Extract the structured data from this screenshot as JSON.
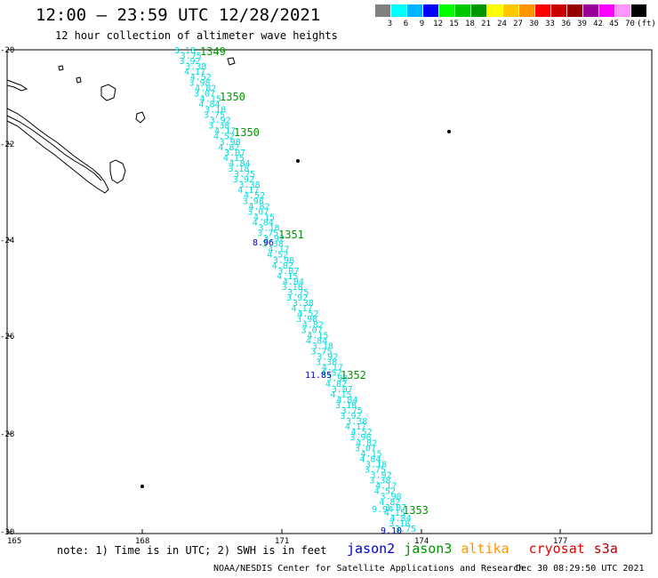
{
  "title": "12:00 — 23:59 UTC 12/28/2021",
  "subtitle": "12 hour collection of altimeter wave heights",
  "legend": {
    "unit_label": "(ft)",
    "bins": [
      {
        "label": "3",
        "color": "#808080"
      },
      {
        "label": "6",
        "color": "#00ffff"
      },
      {
        "label": "9",
        "color": "#00b4ff"
      },
      {
        "label": "12",
        "color": "#0000ff"
      },
      {
        "label": "15",
        "color": "#00ff00"
      },
      {
        "label": "18",
        "color": "#00c800"
      },
      {
        "label": "21",
        "color": "#009600"
      },
      {
        "label": "24",
        "color": "#ffff00"
      },
      {
        "label": "27",
        "color": "#ffc800"
      },
      {
        "label": "30",
        "color": "#ff9600"
      },
      {
        "label": "33",
        "color": "#ff0000"
      },
      {
        "label": "36",
        "color": "#c80000"
      },
      {
        "label": "39",
        "color": "#960000"
      },
      {
        "label": "42",
        "color": "#960096"
      },
      {
        "label": "45",
        "color": "#ff00ff"
      },
      {
        "label": "70",
        "color": "#ff96ff"
      },
      {
        "label": "",
        "color": "#000000"
      }
    ]
  },
  "axes": {
    "lat_labels": [
      "-20",
      "-22",
      "-24",
      "-26",
      "-28",
      "-30"
    ],
    "lon_labels": [
      "165",
      "168",
      "171",
      "174",
      "177"
    ]
  },
  "track": {
    "color": "#00dcdc",
    "values_top": [
      "3.18",
      "3.75",
      "3.92",
      "3.38",
      "4.17",
      "4.52",
      "3.98",
      "4.82",
      "3.07",
      "4.15",
      "4.84"
    ],
    "highlight_value": "8.96",
    "highlight_value_2": "11.85",
    "bottom_value": "9.10",
    "bottom_value_2": "9.94"
  },
  "time_labels": [
    {
      "text": "1349"
    },
    {
      "text": "1350"
    },
    {
      "text": "1350"
    },
    {
      "text": "1351"
    },
    {
      "text": "1352"
    },
    {
      "text": "1353"
    }
  ],
  "note": "note: 1) Time is in UTC; 2) SWH is in feet",
  "satellites": [
    {
      "name": "jason2",
      "color": "#0000cc"
    },
    {
      "name": "jason3",
      "color": "#009600"
    },
    {
      "name": "altika",
      "color": "#ff9600"
    },
    {
      "name": "cryosat",
      "color": "#e60000"
    },
    {
      "name": "s3a",
      "color": "#b40000"
    }
  ],
  "credit": "NOAA/NESDIS Center for Satellite Applications and Research",
  "timestamp": "Dec 30 08:29:50 UTC 2021"
}
